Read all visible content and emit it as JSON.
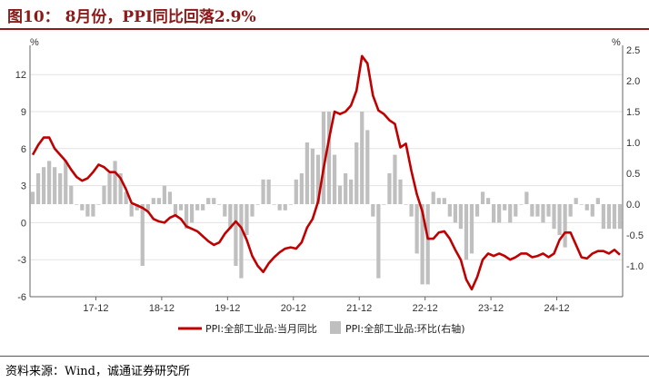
{
  "figure": {
    "title": "图10： 8月份，PPI同比回落2.9%",
    "source": "资料来源：Wind，诚通证券研究所"
  },
  "chart_data": {
    "type": "bar+line",
    "left_axis": {
      "unit": "%",
      "ylim": [
        -6,
        14
      ],
      "ticks": [
        -6,
        -3,
        0,
        3,
        6,
        9,
        12
      ],
      "tick_labels": [
        "-6",
        "-3",
        "0",
        "3",
        "6",
        "9",
        "12"
      ]
    },
    "right_axis": {
      "unit": "%",
      "ylim": [
        -1.5,
        2.5
      ],
      "ticks": [
        -1.0,
        -0.5,
        0.0,
        0.5,
        1.0,
        1.5,
        2.0,
        2.5
      ],
      "tick_labels": [
        "-1.0",
        "-0.5",
        "0.0",
        "0.5",
        "1.0",
        "1.5",
        "2.0",
        "2.5"
      ]
    },
    "x_tick_labels": [
      "17-12",
      "18-12",
      "19-12",
      "20-12",
      "21-12",
      "22-12",
      "23-12",
      "24-12"
    ],
    "x_tick_positions": [
      12,
      24,
      36,
      48,
      60,
      72,
      84,
      96
    ],
    "series": [
      {
        "name": "PPI:全部工业品:当月同比",
        "axis": "left",
        "kind": "line",
        "color": "#c00000",
        "values": [
          5.5,
          6.3,
          6.9,
          6.9,
          6.0,
          5.5,
          5.0,
          4.3,
          3.7,
          3.4,
          3.6,
          4.1,
          4.7,
          4.5,
          4.1,
          4.1,
          3.6,
          2.7,
          1.6,
          1.4,
          1.2,
          0.9,
          0.3,
          0.1,
          0.0,
          0.4,
          0.6,
          0.3,
          -0.3,
          -0.5,
          -0.7,
          -1.1,
          -1.5,
          -1.8,
          -1.6,
          -0.9,
          -0.4,
          0.1,
          -0.4,
          -1.4,
          -2.7,
          -3.5,
          -4.0,
          -3.3,
          -2.8,
          -2.4,
          -2.1,
          -2.0,
          -2.1,
          -1.6,
          -0.4,
          0.3,
          1.7,
          4.4,
          6.8,
          9.0,
          8.8,
          9.0,
          9.5,
          10.7,
          13.5,
          12.9,
          10.3,
          9.1,
          8.8,
          8.3,
          8.0,
          6.1,
          6.4,
          4.2,
          2.3,
          0.9,
          -1.3,
          -1.3,
          -0.8,
          -0.7,
          -1.3,
          -2.2,
          -3.0,
          -4.6,
          -5.4,
          -4.4,
          -3.0,
          -2.5,
          -2.7,
          -2.5,
          -2.7,
          -3.0,
          -2.8,
          -2.5,
          -2.5,
          -2.8,
          -2.7,
          -2.5,
          -2.8,
          -2.5,
          -1.4,
          -0.8,
          -0.8,
          -1.8,
          -2.8,
          -2.9,
          -2.5,
          -2.3,
          -2.3,
          -2.5,
          -2.2,
          -2.6
        ]
      },
      {
        "name": "PPI:全部工业品:环比(右轴)",
        "axis": "right",
        "kind": "bar",
        "color": "#bfbfbf",
        "values": [
          0.2,
          0.5,
          0.6,
          0.7,
          0.6,
          0.5,
          0.7,
          0.3,
          0.0,
          -0.1,
          -0.2,
          -0.2,
          0.0,
          0.3,
          0.5,
          0.7,
          0.5,
          0.2,
          -0.2,
          -0.1,
          -1.0,
          -0.1,
          0.1,
          0.1,
          0.3,
          0.2,
          -0.2,
          -0.1,
          -0.4,
          -0.3,
          -0.1,
          -0.1,
          0.1,
          0.1,
          0.0,
          -0.2,
          -0.4,
          -1.0,
          -1.2,
          -0.5,
          -0.2,
          0.0,
          0.4,
          0.4,
          0.0,
          -0.1,
          -0.1,
          0.0,
          0.4,
          0.5,
          1.0,
          0.9,
          0.8,
          1.5,
          1.5,
          0.8,
          0.3,
          0.5,
          0.4,
          1.0,
          1.5,
          1.2,
          -0.2,
          -1.2,
          0.0,
          0.5,
          0.8,
          0.4,
          0.0,
          -0.2,
          -0.8,
          -1.3,
          -1.3,
          0.2,
          0.1,
          0.1,
          -0.2,
          -0.3,
          -0.4,
          -0.9,
          -0.8,
          -0.2,
          0.2,
          0.1,
          -0.3,
          -0.3,
          -0.1,
          -0.3,
          -0.2,
          0.0,
          0.2,
          -0.2,
          -0.2,
          -0.3,
          -0.2,
          -0.4,
          -0.5,
          -0.7,
          -0.2,
          0.1,
          0.0,
          -0.1,
          -0.2,
          0.1,
          -0.4,
          -0.4,
          -0.4,
          -0.4
        ]
      }
    ],
    "legend": {
      "placement": "bottom"
    }
  }
}
